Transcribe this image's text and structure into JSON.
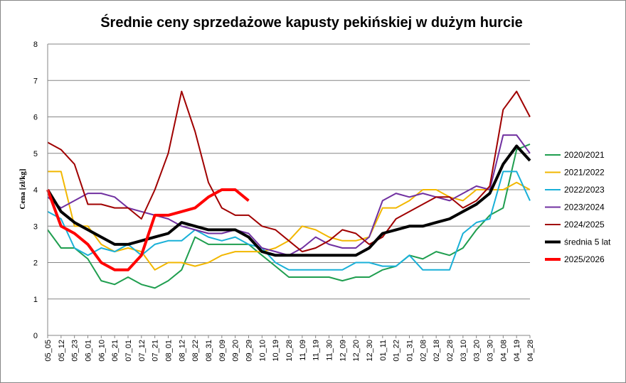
{
  "chart_data": {
    "type": "line",
    "title": "Średnie ceny sprzedażowe kapusty pekińskiej w dużym hurcie",
    "ylabel": "Cena [zł/kg]",
    "xlabel": "",
    "ylim": [
      0,
      8
    ],
    "yticks": [
      "0",
      "1",
      "2",
      "3",
      "4",
      "5",
      "6",
      "7",
      "8"
    ],
    "grid": "horizontal",
    "legend_position": "right",
    "categories": [
      "05_05",
      "05_12",
      "05_23",
      "06_01",
      "06_10",
      "06_21",
      "07_01",
      "07_12",
      "07_21",
      "08_01",
      "08_12",
      "08_22",
      "08_31",
      "09_09",
      "09_20",
      "09_29",
      "10_10",
      "10_19",
      "10_28",
      "11_09",
      "11_19",
      "11_30",
      "12_09",
      "12_20",
      "12_30",
      "01_11",
      "01_22",
      "01_31",
      "02_08",
      "02_18",
      "02_28",
      "03_10",
      "03_20",
      "03_30",
      "04_08",
      "04_19",
      "04_28"
    ],
    "series": [
      {
        "name": "2020/2021",
        "color": "#1f9e4f",
        "width": 2,
        "values": [
          2.9,
          2.4,
          2.4,
          2.1,
          1.5,
          1.4,
          1.6,
          1.4,
          1.3,
          1.5,
          1.8,
          2.7,
          2.5,
          2.5,
          2.5,
          2.5,
          2.2,
          1.9,
          1.6,
          1.6,
          1.6,
          1.6,
          1.5,
          1.6,
          1.6,
          1.8,
          1.9,
          2.2,
          2.1,
          2.3,
          2.2,
          2.4,
          2.9,
          3.3,
          3.5,
          5.1,
          5.25
        ]
      },
      {
        "name": "2021/2022",
        "color": "#f2b700",
        "width": 2,
        "values": [
          4.5,
          4.5,
          3.0,
          3.0,
          2.5,
          2.3,
          2.4,
          2.3,
          1.8,
          2.0,
          2.0,
          1.9,
          2.0,
          2.2,
          2.3,
          2.3,
          2.3,
          2.4,
          2.6,
          3.0,
          2.9,
          2.7,
          2.6,
          2.6,
          2.7,
          3.5,
          3.5,
          3.7,
          4.0,
          4.0,
          3.8,
          3.7,
          4.0,
          4.0,
          4.0,
          4.2,
          4.0
        ]
      },
      {
        "name": "2022/2023",
        "color": "#19b0d8",
        "width": 2,
        "values": [
          3.4,
          3.2,
          2.4,
          2.2,
          2.4,
          2.3,
          2.5,
          2.2,
          2.5,
          2.6,
          2.6,
          2.9,
          2.7,
          2.6,
          2.7,
          2.5,
          2.4,
          2.0,
          1.8,
          1.8,
          1.8,
          1.8,
          1.8,
          2.0,
          2.0,
          1.9,
          1.9,
          2.2,
          1.8,
          1.8,
          1.8,
          2.8,
          3.1,
          3.2,
          4.5,
          4.5,
          3.7
        ]
      },
      {
        "name": "2023/2024",
        "color": "#7030a0",
        "width": 2,
        "values": [
          3.8,
          3.5,
          3.7,
          3.9,
          3.9,
          3.8,
          3.5,
          3.4,
          3.3,
          3.2,
          3.0,
          2.9,
          2.8,
          2.8,
          2.9,
          2.8,
          2.4,
          2.3,
          2.2,
          2.4,
          2.7,
          2.5,
          2.4,
          2.4,
          2.7,
          3.7,
          3.9,
          3.8,
          3.9,
          3.8,
          3.7,
          3.9,
          4.1,
          4.0,
          5.5,
          5.5,
          5.0
        ]
      },
      {
        "name": "2024/2025",
        "color": "#a00000",
        "width": 2,
        "values": [
          5.3,
          5.1,
          4.7,
          3.6,
          3.6,
          3.5,
          3.5,
          3.2,
          4.0,
          5.0,
          6.7,
          5.6,
          4.2,
          3.5,
          3.3,
          3.3,
          3.0,
          2.9,
          2.6,
          2.3,
          2.4,
          2.6,
          2.9,
          2.8,
          2.5,
          2.7,
          3.2,
          3.4,
          3.6,
          3.8,
          3.8,
          3.5,
          3.7,
          4.1,
          6.2,
          6.7,
          6.0
        ]
      },
      {
        "name": "średnia 5 lat",
        "color": "#000000",
        "width": 4,
        "values": [
          4.0,
          3.4,
          3.1,
          2.9,
          2.7,
          2.5,
          2.5,
          2.6,
          2.7,
          2.8,
          3.1,
          3.0,
          2.9,
          2.9,
          2.9,
          2.7,
          2.3,
          2.2,
          2.2,
          2.2,
          2.2,
          2.2,
          2.2,
          2.2,
          2.4,
          2.8,
          2.9,
          3.0,
          3.0,
          3.1,
          3.2,
          3.4,
          3.6,
          3.9,
          4.7,
          5.2,
          4.8
        ]
      },
      {
        "name": "2025/2026",
        "color": "#ff0000",
        "width": 4,
        "values": [
          4.0,
          3.0,
          2.8,
          2.5,
          2.0,
          1.8,
          1.8,
          2.2,
          3.3,
          3.3,
          3.4,
          3.5,
          3.8,
          4.0,
          4.0,
          3.7,
          null,
          null,
          null,
          null,
          null,
          null,
          null,
          null,
          null,
          null,
          null,
          null,
          null,
          null,
          null,
          null,
          null,
          null,
          null,
          null,
          null
        ]
      }
    ]
  }
}
